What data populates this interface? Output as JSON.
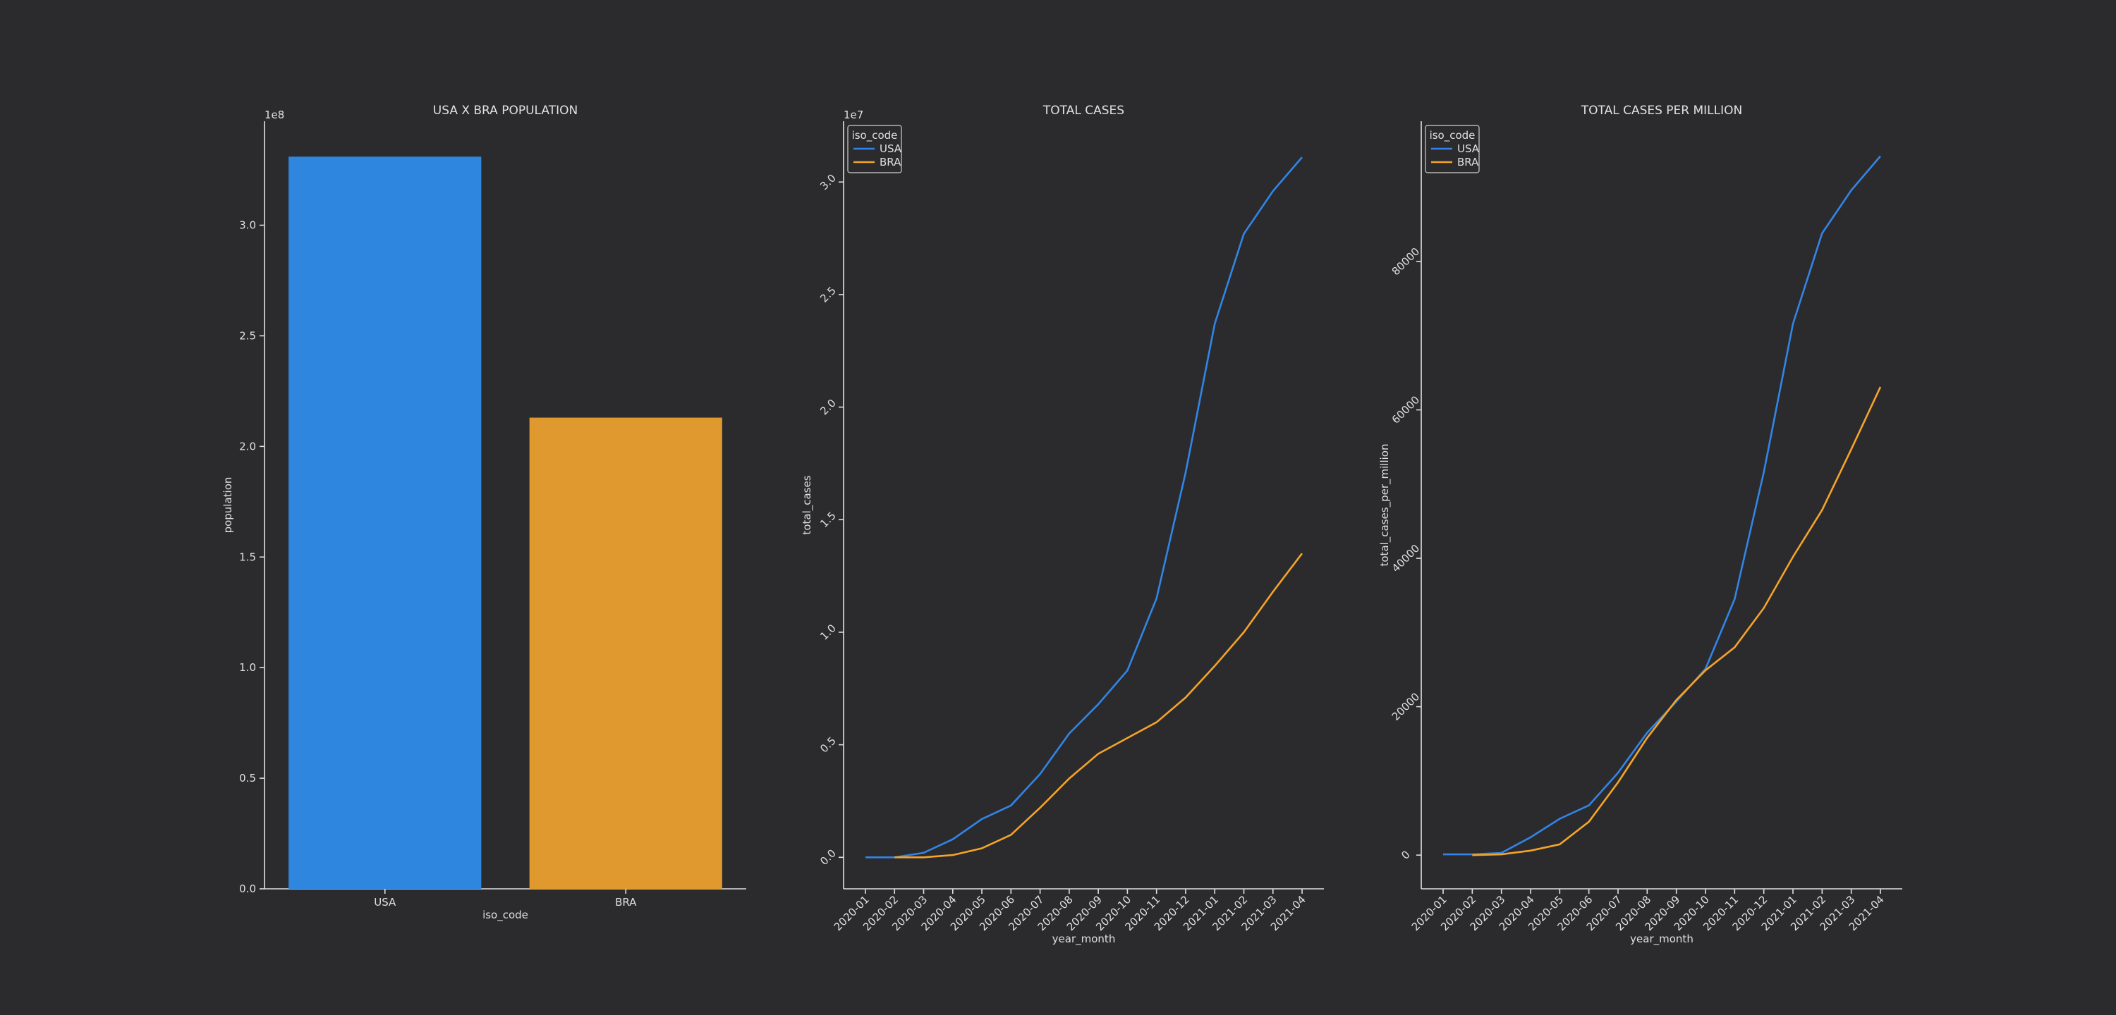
{
  "chart_data": [
    {
      "type": "bar",
      "title": "USA X BRA POPULATION",
      "xlabel": "iso_code",
      "ylabel": "population",
      "offset_text": "1e8",
      "categories": [
        "USA",
        "BRA"
      ],
      "values": [
        3.31,
        2.13
      ],
      "colors": [
        "#2e86de",
        "#e0992e"
      ],
      "ylim": [
        0,
        3.47
      ],
      "yticks": [
        {
          "value": 0,
          "label": "0.0"
        },
        0.5,
        {
          "value": 1,
          "label": "1.0"
        },
        1.5,
        {
          "value": 2,
          "label": "2.0"
        },
        2.5,
        {
          "value": 3,
          "label": "3.0"
        }
      ],
      "xtick_rotation": 0,
      "ytick_rotation": 0
    },
    {
      "type": "line",
      "title": "TOTAL CASES",
      "xlabel": "year_month",
      "ylabel": "total_cases",
      "offset_text": "1e7",
      "categories": [
        "2020-01",
        "2020-02",
        "2020-03",
        "2020-04",
        "2020-05",
        "2020-06",
        "2020-07",
        "2020-08",
        "2020-09",
        "2020-10",
        "2020-11",
        "2020-12",
        "2021-01",
        "2021-02",
        "2021-03",
        "2021-04"
      ],
      "series": [
        {
          "name": "USA",
          "color": "#3285e6",
          "values": [
            0,
            0,
            0.02,
            0.08,
            0.17,
            0.23,
            0.37,
            0.55,
            0.68,
            0.83,
            1.15,
            1.71,
            2.37,
            2.77,
            2.96,
            3.11
          ]
        },
        {
          "name": "BRA",
          "color": "#f5a42a",
          "values": [
            null,
            0,
            0,
            0.01,
            0.04,
            0.1,
            0.22,
            0.35,
            0.46,
            0.53,
            0.6,
            0.71,
            0.85,
            1.0,
            1.18,
            1.35
          ]
        }
      ],
      "ylim": [
        -0.14,
        3.27
      ],
      "yticks": [
        {
          "value": 0,
          "label": "0.0"
        },
        0.5,
        {
          "value": 1,
          "label": "1.0"
        },
        1.5,
        {
          "value": 2,
          "label": "2.0"
        },
        2.5,
        {
          "value": 3,
          "label": "3.0"
        }
      ],
      "legend_title": "iso_code",
      "legend": "upper left",
      "xtick_rotation": 45,
      "ytick_rotation": 45
    },
    {
      "type": "line",
      "title": "TOTAL CASES PER MILLION",
      "xlabel": "year_month",
      "ylabel": "total_cases_per_million",
      "categories": [
        "2020-01",
        "2020-02",
        "2020-03",
        "2020-04",
        "2020-05",
        "2020-06",
        "2020-07",
        "2020-08",
        "2020-09",
        "2020-10",
        "2020-11",
        "2020-12",
        "2021-01",
        "2021-02",
        "2021-03",
        "2021-04"
      ],
      "series": [
        {
          "name": "USA",
          "color": "#3285e6",
          "values": [
            100,
            100,
            300,
            2400,
            4900,
            6700,
            11100,
            16500,
            20700,
            25100,
            34500,
            51600,
            71600,
            83800,
            89600,
            94200
          ]
        },
        {
          "name": "BRA",
          "color": "#f5a42a",
          "values": [
            null,
            0,
            100,
            600,
            1450,
            4500,
            9800,
            15800,
            20900,
            24900,
            28000,
            33300,
            40200,
            46500,
            54700,
            63100
          ]
        }
      ],
      "ylim": [
        -4545,
        98900
      ],
      "yticks": [
        0,
        20000,
        40000,
        60000,
        80000
      ],
      "legend_title": "iso_code",
      "legend": "upper left",
      "xtick_rotation": 45,
      "ytick_rotation": 45
    }
  ]
}
